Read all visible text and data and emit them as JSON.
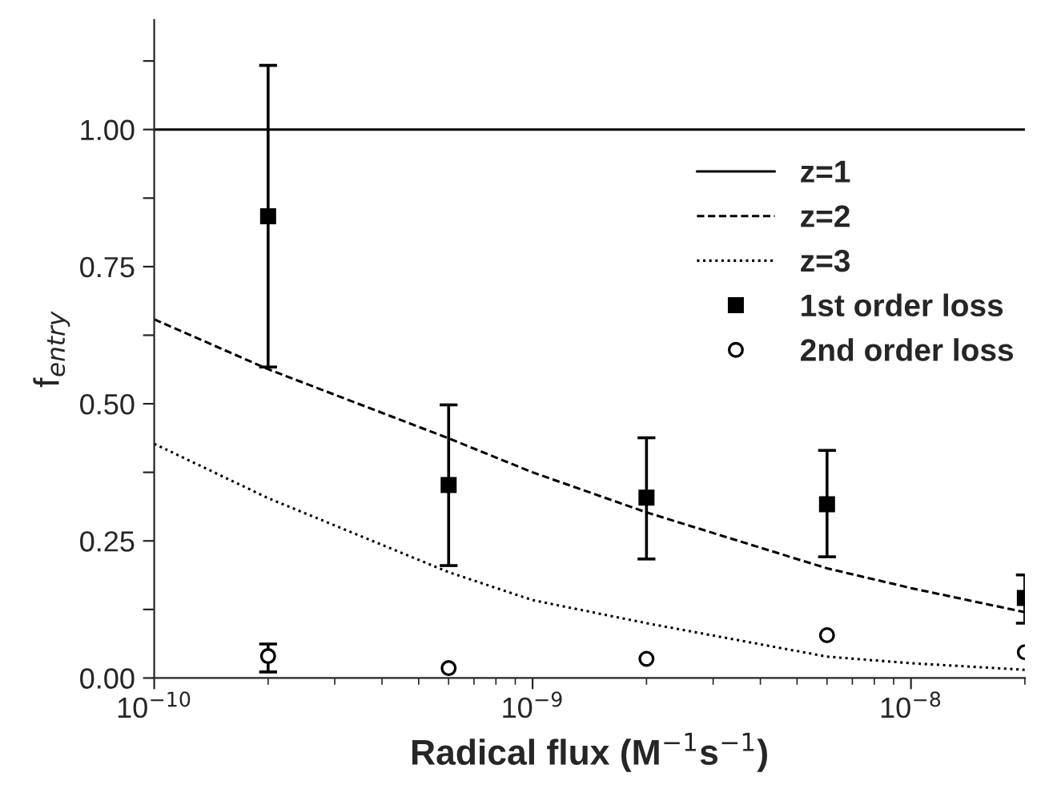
{
  "chart_data": {
    "type": "scatter",
    "xlabel": "Radical flux (M$^{−1}$s$^{−1}$)",
    "ylabel": "f$_{entry}$",
    "log": "x",
    "xlim": [
      1e-10,
      2e-08
    ],
    "xticks": [
      {
        "value": 1e-10,
        "label": "10$^{−10}$"
      },
      {
        "value": 1e-09,
        "label": "10$^{−9}$"
      },
      {
        "value": 1e-08,
        "label": "10$^{−8}$"
      }
    ],
    "ylim": [
      0,
      1.2
    ],
    "yticks": [
      {
        "value": 0,
        "label": "0.00"
      },
      {
        "value": 0.125,
        "label": null
      },
      {
        "value": 0.25,
        "label": "0.25"
      },
      {
        "value": 0.375,
        "label": null
      },
      {
        "value": 0.5,
        "label": "0.50"
      },
      {
        "value": 0.625,
        "label": null
      },
      {
        "value": 0.75,
        "label": "0.75"
      },
      {
        "value": 0.875,
        "label": null
      },
      {
        "value": 1,
        "label": "1.00"
      },
      {
        "value": 1.125,
        "label": null
      }
    ],
    "grid": false,
    "legend": "top right",
    "series": [
      {
        "name": "z=1",
        "type": "line",
        "line_style": "solid",
        "marker": "none",
        "color": "#000000",
        "x": [
          1e-10,
          2e-08
        ],
        "values": [
          1,
          1
        ]
      },
      {
        "name": "z=2",
        "type": "line",
        "line_style": "dashed",
        "marker": "none",
        "color": "#000000",
        "x": [
          1e-10,
          2e-10,
          6e-10,
          1e-09,
          2e-09,
          6e-09,
          1e-08,
          2e-08
        ],
        "values": [
          0.654,
          0.563,
          0.437,
          0.375,
          0.302,
          0.2,
          0.164,
          0.12
        ]
      },
      {
        "name": "z=3",
        "type": "line",
        "line_style": "dotted",
        "marker": "none",
        "color": "#000000",
        "x": [
          1e-10,
          2e-10,
          6e-10,
          1e-09,
          2e-09,
          6e-09,
          1e-08,
          2e-08
        ],
        "values": [
          0.427,
          0.328,
          0.193,
          0.142,
          0.1,
          0.039,
          0.027,
          0.015
        ]
      },
      {
        "name": "1st order loss",
        "marker": "square",
        "color": "#000000",
        "x": [
          2e-10,
          6e-10,
          2e-09,
          6e-09,
          2e-08
        ],
        "values": [
          0.842,
          0.352,
          0.329,
          0.317,
          0.146
        ],
        "errors": [
          [
            0.567,
            1.117
          ],
          [
            0.205,
            0.498
          ],
          [
            0.217,
            0.438
          ],
          [
            0.221,
            0.415
          ],
          [
            0.1,
            0.188
          ]
        ]
      },
      {
        "name": "2nd order loss",
        "marker": "circle",
        "color": "#000000",
        "x": [
          2e-10,
          6e-10,
          2e-09,
          6e-09,
          2e-08
        ],
        "values": [
          0.04,
          0.018,
          0.035,
          0.078,
          0.047
        ],
        "errors": [
          [
            0.011,
            0.062
          ],
          null,
          null,
          null,
          null
        ]
      }
    ]
  }
}
